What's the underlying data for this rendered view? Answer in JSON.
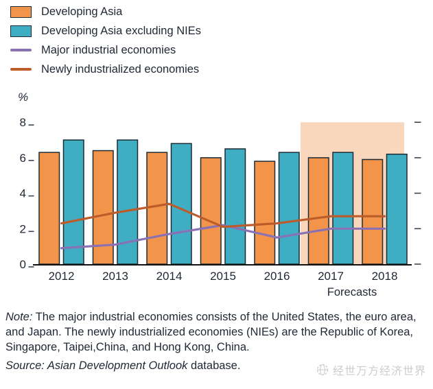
{
  "chart_data": {
    "type": "bar",
    "title": "",
    "unit_label": "%",
    "categories": [
      "2012",
      "2013",
      "2014",
      "2015",
      "2016",
      "2017",
      "2018"
    ],
    "series": [
      {
        "name": "Developing Asia",
        "type": "bar",
        "color": "#F2944A",
        "values": [
          6.3,
          6.4,
          6.3,
          6.0,
          5.8,
          6.0,
          5.9
        ]
      },
      {
        "name": "Developing Asia excluding NIEs",
        "type": "bar",
        "color": "#3FAEC3",
        "values": [
          7.0,
          7.0,
          6.8,
          6.5,
          6.3,
          6.3,
          6.2
        ]
      },
      {
        "name": "Major industrial economies",
        "type": "line",
        "color": "#8971B3",
        "values": [
          0.9,
          1.1,
          1.7,
          2.2,
          1.5,
          2.0,
          2.0
        ]
      },
      {
        "name": "Newly industrialized economies",
        "type": "line",
        "color": "#BE5B2A",
        "values": [
          2.3,
          2.9,
          3.4,
          2.1,
          2.3,
          2.7,
          2.7
        ]
      }
    ],
    "xlabel": "",
    "ylabel": "%",
    "ylim": [
      0,
      8
    ],
    "yticks": [
      0,
      2,
      4,
      6,
      8
    ],
    "grid": false,
    "legend_position": "top-left",
    "bar_border_color": "#1c2b33",
    "forecast": {
      "categories": [
        "2017",
        "2018"
      ],
      "label": "Forecasts",
      "shade_color": "#F9D7BD"
    }
  },
  "note": {
    "label": "Note:",
    "text": " The major industrial economies consists of the United States, the euro area, and Japan. The newly industrialized economies (NIEs) are the Republic of Korea, Singapore, Taipei,China, and Hong Kong, China."
  },
  "source": {
    "label": "Source:",
    "work": " Asian Development Outlook",
    "rest": " database."
  },
  "watermark": {
    "text": "经世万方经济世界"
  }
}
